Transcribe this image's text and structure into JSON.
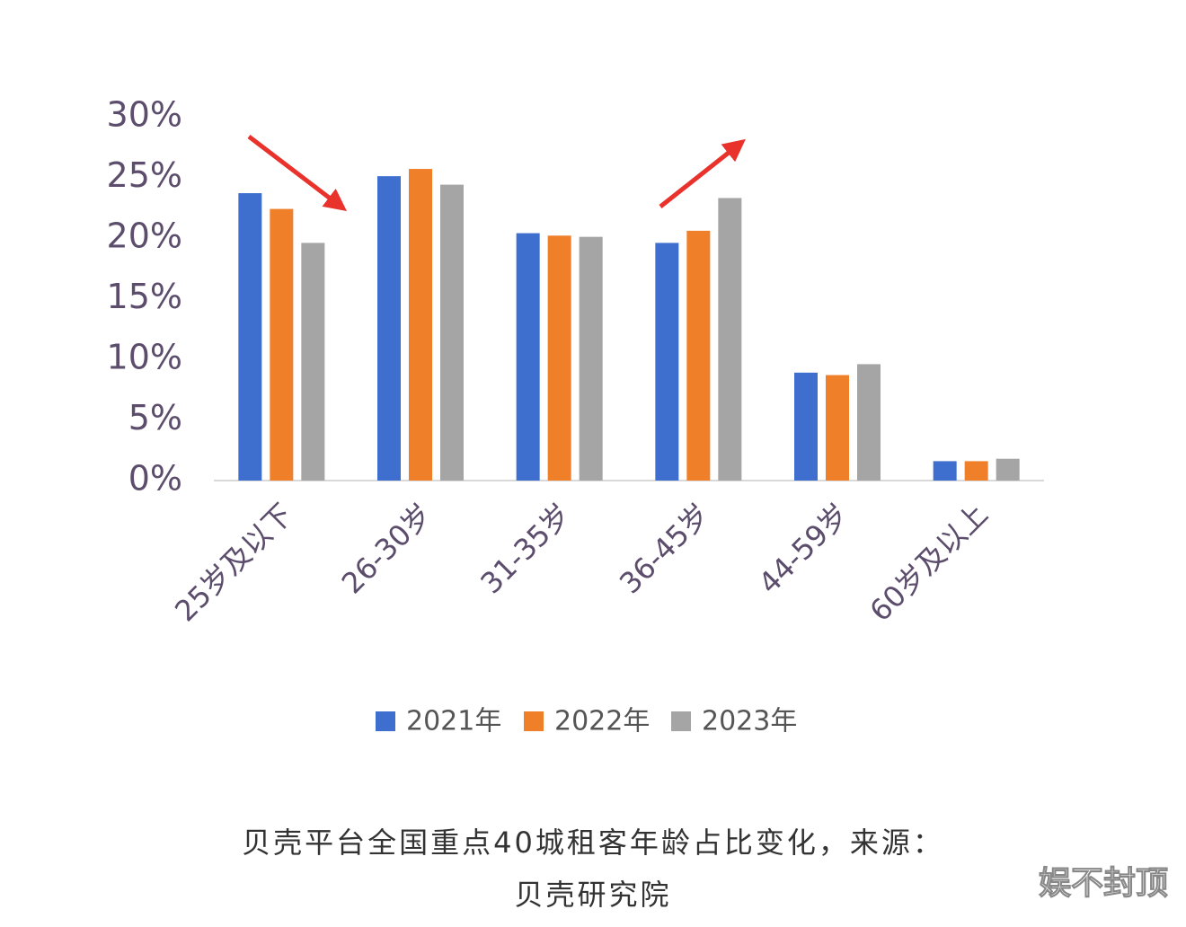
{
  "chart_data": {
    "type": "bar",
    "categories": [
      "25岁及以下",
      "26-30岁",
      "31-35岁",
      "36-45岁",
      "44-59岁",
      "60岁及以上"
    ],
    "series": [
      {
        "name": "2021年",
        "color": "#3e6fcf",
        "values": [
          23.7,
          25.1,
          20.4,
          19.6,
          8.9,
          1.6
        ]
      },
      {
        "name": "2022年",
        "color": "#f07f2a",
        "values": [
          22.4,
          25.7,
          20.2,
          20.6,
          8.7,
          1.6
        ]
      },
      {
        "name": "2023年",
        "color": "#a5a5a5",
        "values": [
          19.6,
          24.4,
          20.1,
          23.3,
          9.6,
          1.8
        ]
      }
    ],
    "ylim": [
      0,
      30
    ],
    "yticks": [
      {
        "value": 0,
        "label": "0%"
      },
      {
        "value": 5,
        "label": "5%"
      },
      {
        "value": 10,
        "label": "10%"
      },
      {
        "value": 15,
        "label": "15%"
      },
      {
        "value": 20,
        "label": "20%"
      },
      {
        "value": 25,
        "label": "25%"
      },
      {
        "value": 30,
        "label": "30%"
      }
    ],
    "grid": false,
    "caption_lines": [
      "贝壳平台全国重点40城租客年龄占比变化，来源：",
      "贝壳研究院"
    ],
    "watermark": "娱不封顶"
  }
}
